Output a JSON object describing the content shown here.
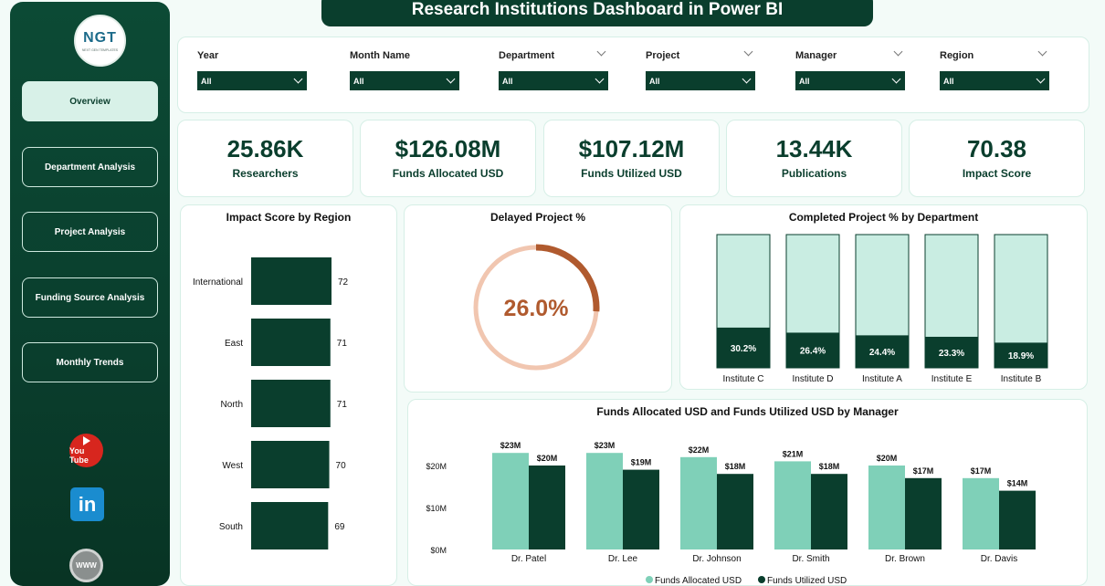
{
  "header": {
    "title": "Research Institutions Dashboard in Power BI"
  },
  "logo": {
    "text": "NGT",
    "subtext": "NEXT GEN TEMPLATES"
  },
  "sidebar": {
    "items": [
      {
        "label": "Overview",
        "active": true
      },
      {
        "label": "Department Analysis",
        "active": false
      },
      {
        "label": "Project Analysis",
        "active": false
      },
      {
        "label": "Funding Source Analysis",
        "active": false
      },
      {
        "label": "Monthly Trends",
        "active": false
      }
    ],
    "social": {
      "youtube": "You Tube",
      "linkedin": "in",
      "web": "WWW"
    }
  },
  "filters": [
    {
      "label": "Year",
      "value": "All"
    },
    {
      "label": "Month Name",
      "value": "All"
    },
    {
      "label": "Department",
      "value": "All"
    },
    {
      "label": "Project",
      "value": "All"
    },
    {
      "label": "Manager",
      "value": "All"
    },
    {
      "label": "Region",
      "value": "All"
    }
  ],
  "kpis": [
    {
      "value": "25.86K",
      "label": "Researchers"
    },
    {
      "value": "$126.08M",
      "label": "Funds Allocated USD"
    },
    {
      "value": "$107.12M",
      "label": "Funds Utilized USD"
    },
    {
      "value": "13.44K",
      "label": "Publications"
    },
    {
      "value": "70.38",
      "label": "Impact Score"
    }
  ],
  "colors": {
    "dark_green": "#0a3e2d",
    "light_green": "#c9ede2",
    "mint": "#7fd0b8",
    "donut_accent": "#b05a2e",
    "donut_track": "#f1c6b0"
  },
  "chart_data": [
    {
      "type": "bar",
      "title": "Impact Score by Region",
      "orientation": "horizontal",
      "categories": [
        "International",
        "East",
        "North",
        "West",
        "South"
      ],
      "values": [
        72,
        71,
        71,
        70,
        69
      ],
      "labels": [
        "72",
        "71",
        "71",
        "70",
        "69"
      ]
    },
    {
      "type": "pie",
      "title": "Delayed Project %",
      "value": 26.0,
      "label": "26.0%"
    },
    {
      "type": "bar",
      "title": "Completed Project % by Department",
      "categories": [
        "Institute C",
        "Institute D",
        "Institute A",
        "Institute E",
        "Institute B"
      ],
      "values": [
        30.2,
        26.4,
        24.4,
        23.3,
        18.9
      ],
      "labels": [
        "30.2%",
        "26.4%",
        "24.4%",
        "23.3%",
        "18.9%"
      ],
      "ylim": [
        0,
        100
      ]
    },
    {
      "type": "bar",
      "title": "Funds Allocated USD and Funds Utilized USD by Manager",
      "categories": [
        "Dr. Patel",
        "Dr. Lee",
        "Dr. Johnson",
        "Dr. Smith",
        "Dr. Brown",
        "Dr. Davis"
      ],
      "series": [
        {
          "name": "Funds Allocated USD",
          "values": [
            23,
            23,
            22,
            21,
            20,
            17
          ],
          "labels": [
            "$23M",
            "$23M",
            "$22M",
            "$21M",
            "$20M",
            "$17M"
          ]
        },
        {
          "name": "Funds Utilized USD",
          "values": [
            20,
            19,
            18,
            18,
            17,
            14
          ],
          "labels": [
            "$20M",
            "$19M",
            "$18M",
            "$18M",
            "$17M",
            "$14M"
          ]
        }
      ],
      "yticks": [
        "$0M",
        "$10M",
        "$20M"
      ],
      "ylim": [
        0,
        25
      ],
      "legend": "bottom"
    }
  ]
}
